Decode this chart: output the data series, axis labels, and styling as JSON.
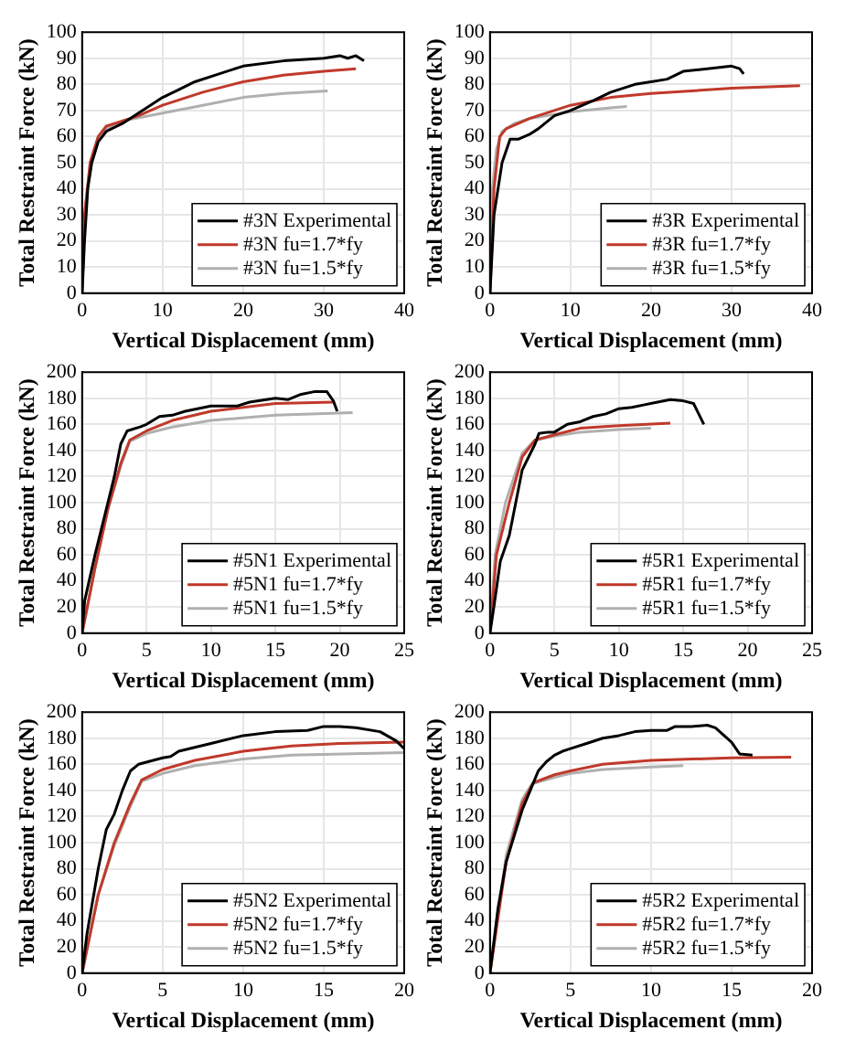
{
  "chart_data": [
    {
      "type": "line",
      "xlabel": "Vertical Displacement (mm)",
      "ylabel": "Total Restraint Force (kN)",
      "xlim": [
        0,
        40
      ],
      "xticks": [
        0,
        10,
        20,
        30,
        40
      ],
      "ylim": [
        0,
        100
      ],
      "yticks": [
        0,
        10,
        20,
        30,
        40,
        50,
        60,
        70,
        80,
        90,
        100
      ],
      "grid": true,
      "legend": "bottom right",
      "series": [
        {
          "name": "#3N Experimental",
          "color": "#000000",
          "x": [
            0,
            0.3,
            0.7,
            1.2,
            2,
            3,
            5,
            7,
            10,
            12,
            14,
            17,
            20,
            25,
            30,
            32,
            33,
            34,
            35
          ],
          "values": [
            0,
            20,
            40,
            50,
            58,
            62,
            65,
            69,
            75,
            78,
            81,
            84,
            87,
            89,
            90,
            91,
            90,
            91,
            89
          ]
        },
        {
          "name": "#3N fu=1.7*fy",
          "color": "#c0392b",
          "x": [
            0,
            0.3,
            1,
            2,
            3,
            5,
            7,
            10,
            15,
            20,
            25,
            30,
            34
          ],
          "values": [
            0,
            30,
            50,
            60,
            64,
            66,
            68,
            72,
            77,
            81,
            83.5,
            85,
            86
          ]
        },
        {
          "name": "#3N fu=1.5*fy",
          "color": "#b0b0b0",
          "x": [
            0,
            0.3,
            1,
            2,
            3,
            5,
            10,
            15,
            20,
            25,
            30.5
          ],
          "values": [
            0,
            30,
            50,
            60,
            63,
            66,
            69,
            72,
            75,
            76.5,
            77.5
          ]
        }
      ]
    },
    {
      "type": "line",
      "xlabel": "Vertical Displacement (mm)",
      "ylabel": "Total Restraint Force (kN)",
      "xlim": [
        0,
        40
      ],
      "xticks": [
        0,
        10,
        20,
        30,
        40
      ],
      "ylim": [
        0,
        100
      ],
      "yticks": [
        0,
        10,
        20,
        30,
        40,
        50,
        60,
        70,
        80,
        90,
        100
      ],
      "grid": true,
      "legend": "bottom right",
      "series": [
        {
          "name": "#3R Experimental",
          "color": "#000000",
          "x": [
            0,
            0.5,
            1,
            1.5,
            2.5,
            3.5,
            5,
            6,
            8,
            10,
            13,
            15,
            18,
            20,
            22,
            24,
            27,
            30,
            31,
            31.5
          ],
          "values": [
            0,
            30,
            40,
            50,
            59,
            59,
            61,
            63,
            68,
            70,
            74,
            77,
            80,
            81,
            82,
            85,
            86,
            87,
            86,
            84
          ]
        },
        {
          "name": "#3R fu=1.7*fy",
          "color": "#c0392b",
          "x": [
            0,
            0.5,
            1.2,
            2,
            5,
            10,
            15,
            20,
            25,
            30,
            38.5
          ],
          "values": [
            0,
            40,
            60,
            63,
            67,
            72,
            75,
            76.5,
            77.5,
            78.5,
            79.5
          ]
        },
        {
          "name": "#3R fu=1.5*fy",
          "color": "#b0b0b0",
          "x": [
            0,
            0.3,
            0.8,
            1.5,
            3,
            5,
            10,
            15,
            17
          ],
          "values": [
            0,
            40,
            55,
            62,
            65,
            67,
            69.5,
            71,
            71.5
          ]
        }
      ]
    },
    {
      "type": "line",
      "xlabel": "Vertical Displacement (mm)",
      "ylabel": "Total Restraint Force (kN)",
      "xlim": [
        0,
        25
      ],
      "xticks": [
        0,
        5,
        10,
        15,
        20,
        25
      ],
      "ylim": [
        0,
        200
      ],
      "yticks": [
        0,
        20,
        40,
        60,
        80,
        100,
        120,
        140,
        160,
        180,
        200
      ],
      "grid": true,
      "legend": "bottom right",
      "series": [
        {
          "name": "#5N1 Experimental",
          "color": "#000000",
          "x": [
            0,
            0.2,
            1,
            2,
            2.5,
            3,
            3.5,
            4.5,
            5,
            6,
            7,
            8,
            10,
            12,
            13,
            15,
            16,
            17,
            18,
            19,
            19.5,
            19.8
          ],
          "values": [
            0,
            25,
            60,
            100,
            120,
            145,
            155,
            158,
            160,
            166,
            167,
            170,
            174,
            174,
            177,
            180,
            179,
            183,
            185,
            185,
            178,
            170
          ]
        },
        {
          "name": "#5N1 fu=1.7*fy",
          "color": "#c0392b",
          "x": [
            0,
            1,
            2,
            3,
            3.7,
            5,
            7,
            10,
            15,
            19.5
          ],
          "values": [
            0,
            50,
            95,
            130,
            148,
            155,
            163,
            170,
            176,
            177
          ]
        },
        {
          "name": "#5N1 fu=1.5*fy",
          "color": "#b0b0b0",
          "x": [
            0,
            1,
            2,
            3,
            3.7,
            5,
            7,
            10,
            15,
            21
          ],
          "values": [
            0,
            50,
            95,
            128,
            147,
            153,
            158,
            163,
            167,
            169
          ]
        }
      ]
    },
    {
      "type": "line",
      "xlabel": "Vertical Displacement (mm)",
      "ylabel": "Total Restraint Force (kN)",
      "xlim": [
        0,
        25
      ],
      "xticks": [
        0,
        5,
        10,
        15,
        20,
        25
      ],
      "ylim": [
        0,
        200
      ],
      "yticks": [
        0,
        20,
        40,
        60,
        80,
        100,
        120,
        140,
        160,
        180,
        200
      ],
      "grid": true,
      "legend": "bottom right",
      "series": [
        {
          "name": "#5R1 Experimental",
          "color": "#000000",
          "x": [
            0,
            0.3,
            0.8,
            1.5,
            2,
            2.5,
            3,
            3.5,
            3.8,
            4.5,
            5,
            6,
            7,
            8,
            9,
            10,
            11,
            12,
            13,
            14,
            15,
            15.8,
            16.2,
            16.6
          ],
          "values": [
            0,
            20,
            55,
            75,
            100,
            125,
            135,
            145,
            153,
            154,
            154,
            160,
            162,
            166,
            168,
            172,
            173,
            175,
            177,
            179,
            178,
            176,
            168,
            160
          ]
        },
        {
          "name": "#5R1 fu=1.7*fy",
          "color": "#c0392b",
          "x": [
            0,
            0.5,
            1.5,
            2.5,
            3.5,
            5,
            7,
            10,
            14
          ],
          "values": [
            0,
            60,
            100,
            135,
            148,
            152,
            157,
            159,
            161
          ]
        },
        {
          "name": "#5R1 fu=1.5*fy",
          "color": "#b0b0b0",
          "x": [
            0,
            0.4,
            1.2,
            2.5,
            3.5,
            5,
            7,
            10,
            12.5
          ],
          "values": [
            0,
            60,
            100,
            138,
            148,
            151,
            154,
            156,
            157
          ]
        }
      ]
    },
    {
      "type": "line",
      "xlabel": "Vertical Displacement (mm)",
      "ylabel": "Total Restraint Force (kN)",
      "xlim": [
        0,
        20
      ],
      "xticks": [
        0,
        5,
        10,
        15,
        20
      ],
      "ylim": [
        0,
        200
      ],
      "yticks": [
        0,
        20,
        40,
        60,
        80,
        100,
        120,
        140,
        160,
        180,
        200
      ],
      "grid": true,
      "legend": "bottom right",
      "series": [
        {
          "name": "#5N2 Experimental",
          "color": "#000000",
          "x": [
            0,
            0.3,
            1,
            1.5,
            2,
            2.5,
            3,
            3.5,
            5,
            5.5,
            6,
            8,
            10,
            12,
            14,
            15,
            16,
            17,
            18.5,
            19.5,
            20
          ],
          "values": [
            0,
            30,
            80,
            110,
            122,
            140,
            155,
            160,
            165,
            166,
            170,
            176,
            182,
            185,
            186,
            189,
            189,
            188,
            185,
            178,
            172
          ]
        },
        {
          "name": "#5N2 fu=1.7*fy",
          "color": "#c0392b",
          "x": [
            0,
            1,
            2,
            3,
            3.7,
            5,
            7,
            10,
            13,
            16,
            20
          ],
          "values": [
            0,
            60,
            100,
            130,
            148,
            156,
            163,
            170,
            174,
            176,
            177
          ]
        },
        {
          "name": "#5N2 fu=1.5*fy",
          "color": "#b0b0b0",
          "x": [
            0,
            1,
            2,
            3,
            3.7,
            5,
            7,
            10,
            13,
            20
          ],
          "values": [
            0,
            60,
            98,
            128,
            147,
            153,
            159,
            164,
            167,
            169
          ]
        }
      ]
    },
    {
      "type": "line",
      "xlabel": "Vertical Displacement (mm)",
      "ylabel": "Total Restraint Force (kN)",
      "xlim": [
        0,
        20
      ],
      "xticks": [
        0,
        5,
        10,
        15,
        20
      ],
      "ylim": [
        0,
        200
      ],
      "yticks": [
        0,
        20,
        40,
        60,
        80,
        100,
        120,
        140,
        160,
        180,
        200
      ],
      "grid": true,
      "legend": "bottom right",
      "series": [
        {
          "name": "#5R2 Experimental",
          "color": "#000000",
          "x": [
            0,
            0.5,
            1,
            1.5,
            2,
            2.5,
            3,
            3.5,
            4,
            4.5,
            5,
            6,
            7,
            8,
            9,
            10,
            11,
            11.5,
            12.5,
            13.5,
            14,
            15,
            15.5,
            16.3
          ],
          "values": [
            0,
            50,
            85,
            105,
            125,
            140,
            155,
            162,
            167,
            170,
            172,
            176,
            180,
            182,
            185,
            186,
            186,
            189,
            189,
            190,
            188,
            177,
            168,
            167
          ]
        },
        {
          "name": "#5R2 fu=1.7*fy",
          "color": "#c0392b",
          "x": [
            0,
            1,
            2,
            2.7,
            4,
            5,
            7,
            10,
            15,
            18.7
          ],
          "values": [
            0,
            85,
            130,
            146,
            152,
            155,
            160,
            163,
            165,
            165.5
          ]
        },
        {
          "name": "#5R2 fu=1.5*fy",
          "color": "#b0b0b0",
          "x": [
            0,
            1,
            2,
            2.6,
            4,
            5,
            7,
            10,
            12
          ],
          "values": [
            0,
            90,
            133,
            145,
            150,
            153,
            156,
            158,
            159
          ]
        }
      ]
    }
  ]
}
